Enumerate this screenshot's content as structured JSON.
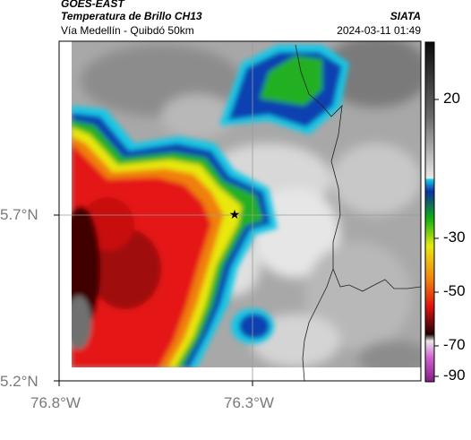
{
  "header": {
    "satellite": "GOES-EAST",
    "product": "Temperatura de Brillo CH13",
    "region": "Vía Medellín - Quibdó 50km",
    "org": "SIATA",
    "datetime": "2024-03-11 01:49"
  },
  "axes": {
    "lat_ticks": [
      "5.7°N",
      "5.2°N"
    ],
    "lon_ticks": [
      "76.8°W",
      "76.3°W"
    ]
  },
  "colorbar": {
    "ticks": [
      "20",
      "-30",
      "-50",
      "-70",
      "-90"
    ],
    "unit_range": [
      30,
      -95
    ]
  },
  "markers": {
    "site": "star"
  },
  "colors": {
    "frame": "#000000",
    "gridline": "#9a9a9a",
    "border_line": "#222222"
  }
}
